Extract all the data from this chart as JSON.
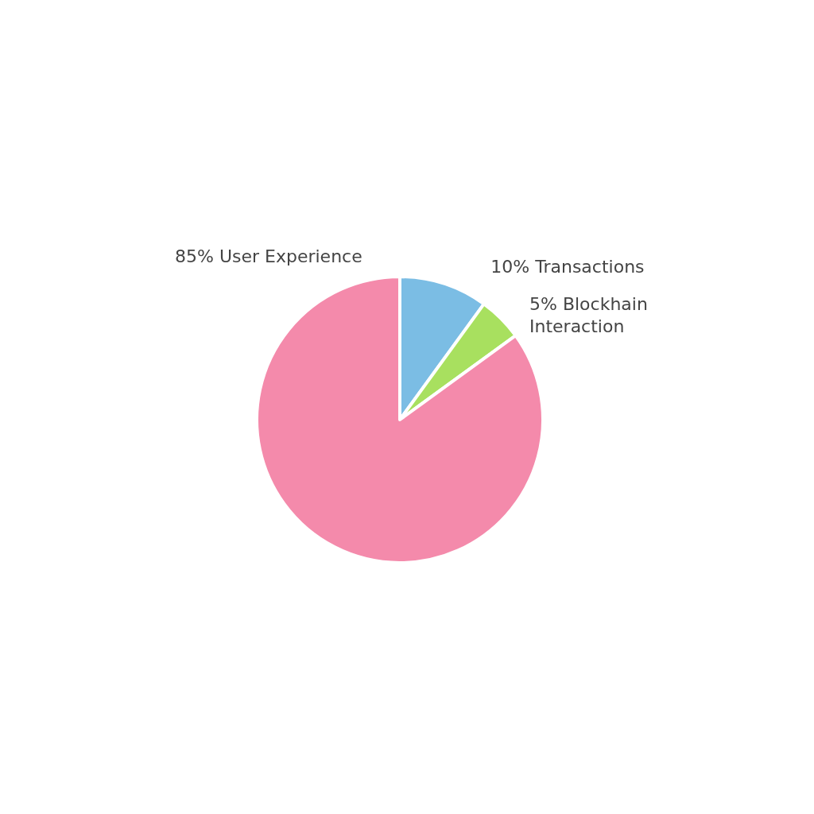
{
  "chart_data": {
    "type": "pie",
    "categories": [
      "Transactions",
      "Blockhain Interaction",
      "User Experience"
    ],
    "values": [
      10,
      5,
      85
    ],
    "colors": [
      "#7bbde4",
      "#a8e05f",
      "#f48aab"
    ],
    "value_labels": [
      "10%",
      "5%",
      "85%"
    ]
  }
}
